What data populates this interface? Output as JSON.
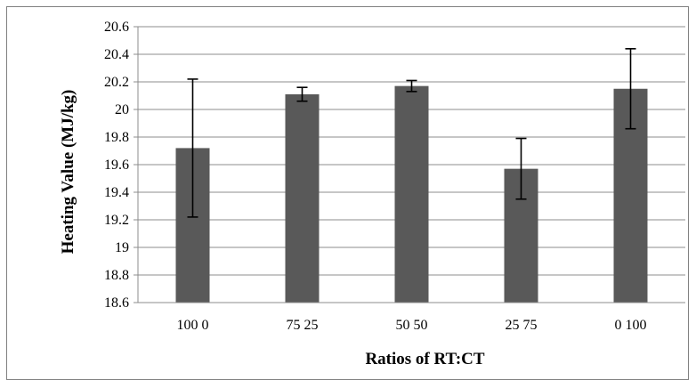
{
  "chart_data": {
    "type": "bar",
    "title": "",
    "xlabel": "Ratios of RT:CT",
    "ylabel": "Heating Value (MJ/kg)",
    "categories": [
      "100 0",
      "75 25",
      "50 50",
      "25 75",
      "0 100"
    ],
    "values": [
      19.72,
      20.11,
      20.17,
      19.57,
      20.15
    ],
    "error_bars": [
      {
        "low": 19.22,
        "high": 20.22
      },
      {
        "low": 20.06,
        "high": 20.16
      },
      {
        "low": 20.13,
        "high": 20.21
      },
      {
        "low": 19.35,
        "high": 19.79
      },
      {
        "low": 19.86,
        "high": 20.44
      }
    ],
    "ylim": [
      18.6,
      20.6
    ],
    "yticks": [
      18.6,
      18.8,
      19,
      19.2,
      19.4,
      19.6,
      19.8,
      20,
      20.2,
      20.4,
      20.6
    ],
    "ytick_labels": [
      "18.6",
      "18.8",
      "19",
      "19.2",
      "19.4",
      "19.6",
      "19.8",
      "20",
      "20.2",
      "20.4",
      "20.6"
    ],
    "grid": true,
    "bar_color": "#595959",
    "gridline_color": "#8c8c8c",
    "errorbar_color": "#000000"
  }
}
